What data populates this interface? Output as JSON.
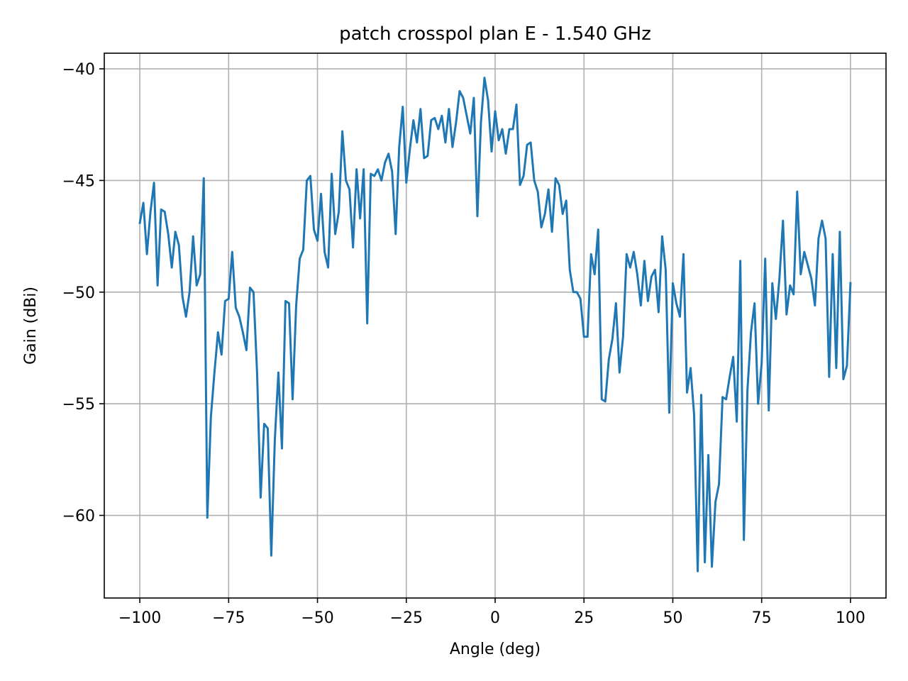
{
  "chart_data": {
    "type": "line",
    "title": "patch crosspol plan E - 1.540 GHz",
    "xlabel": "Angle (deg)",
    "ylabel": "Gain (dBi)",
    "xlim": [
      -110,
      110
    ],
    "ylim": [
      -63.7,
      -39.3
    ],
    "xticks": [
      -100,
      -75,
      -50,
      -25,
      0,
      25,
      50,
      75,
      100
    ],
    "xtick_labels": [
      "−100",
      "−75",
      "−50",
      "−25",
      "0",
      "25",
      "50",
      "75",
      "100"
    ],
    "yticks": [
      -40,
      -45,
      -50,
      -55,
      -60
    ],
    "ytick_labels": [
      "−40",
      "−45",
      "−50",
      "−55",
      "−60"
    ],
    "grid": true,
    "color": "#1f77b4",
    "x_start": -100,
    "x_step": 1,
    "series": [
      {
        "values": [
          -46.9,
          -46.0,
          -48.3,
          -46.4,
          -45.1,
          -49.7,
          -46.3,
          -46.4,
          -47.4,
          -48.9,
          -47.3,
          -47.9,
          -50.2,
          -51.1,
          -50.0,
          -47.5,
          -49.7,
          -49.2,
          -44.9,
          -60.1,
          -55.6,
          -53.6,
          -51.8,
          -52.8,
          -50.4,
          -50.3,
          -48.2,
          -50.7,
          -51.1,
          -51.8,
          -52.6,
          -49.8,
          -50.0,
          -53.6,
          -59.2,
          -55.9,
          -56.1,
          -61.8,
          -56.6,
          -53.6,
          -57.0,
          -50.4,
          -50.5,
          -54.8,
          -50.6,
          -48.5,
          -48.1,
          -45.0,
          -44.8,
          -47.2,
          -47.7,
          -45.6,
          -48.2,
          -48.9,
          -44.7,
          -47.4,
          -46.4,
          -42.8,
          -45.0,
          -45.4,
          -48.0,
          -44.5,
          -46.7,
          -44.5,
          -51.4,
          -44.7,
          -44.8,
          -44.5,
          -45.0,
          -44.2,
          -43.8,
          -44.6,
          -47.4,
          -43.5,
          -41.7,
          -45.1,
          -43.6,
          -42.3,
          -43.3,
          -41.8,
          -44.0,
          -43.9,
          -42.3,
          -42.2,
          -42.7,
          -42.1,
          -43.3,
          -41.8,
          -43.5,
          -42.4,
          -41.0,
          -41.3,
          -42.1,
          -42.9,
          -41.3,
          -46.6,
          -42.4,
          -40.4,
          -41.4,
          -43.7,
          -41.9,
          -43.2,
          -42.7,
          -43.8,
          -42.7,
          -42.7,
          -41.6,
          -45.2,
          -44.8,
          -43.4,
          -43.3,
          -45.0,
          -45.5,
          -47.1,
          -46.5,
          -45.4,
          -47.3,
          -44.9,
          -45.2,
          -46.5,
          -45.9,
          -49.0,
          -50.0,
          -50.0,
          -50.3,
          -52.0,
          -52.0,
          -48.3,
          -49.2,
          -47.2,
          -54.8,
          -54.9,
          -53.0,
          -52.1,
          -50.5,
          -53.6,
          -52.0,
          -48.3,
          -48.9,
          -48.2,
          -49.2,
          -50.6,
          -48.6,
          -50.4,
          -49.3,
          -49.0,
          -50.9,
          -47.5,
          -49.0,
          -55.4,
          -49.6,
          -50.5,
          -51.1,
          -48.3,
          -54.5,
          -53.4,
          -55.5,
          -62.5,
          -54.6,
          -62.1,
          -57.3,
          -62.3,
          -59.4,
          -58.6,
          -54.7,
          -54.8,
          -53.8,
          -52.9,
          -55.8,
          -48.6,
          -61.1,
          -54.4,
          -51.8,
          -50.5,
          -55.0,
          -53.2,
          -48.5,
          -55.3,
          -49.6,
          -51.2,
          -49.4,
          -46.8,
          -51.0,
          -49.7,
          -50.1,
          -45.5,
          -49.2,
          -48.2,
          -48.8,
          -49.4,
          -50.6,
          -47.6,
          -46.8,
          -47.6,
          -53.8,
          -48.3,
          -53.4,
          -47.3,
          -53.9,
          -53.3,
          -49.6
        ]
      }
    ]
  }
}
